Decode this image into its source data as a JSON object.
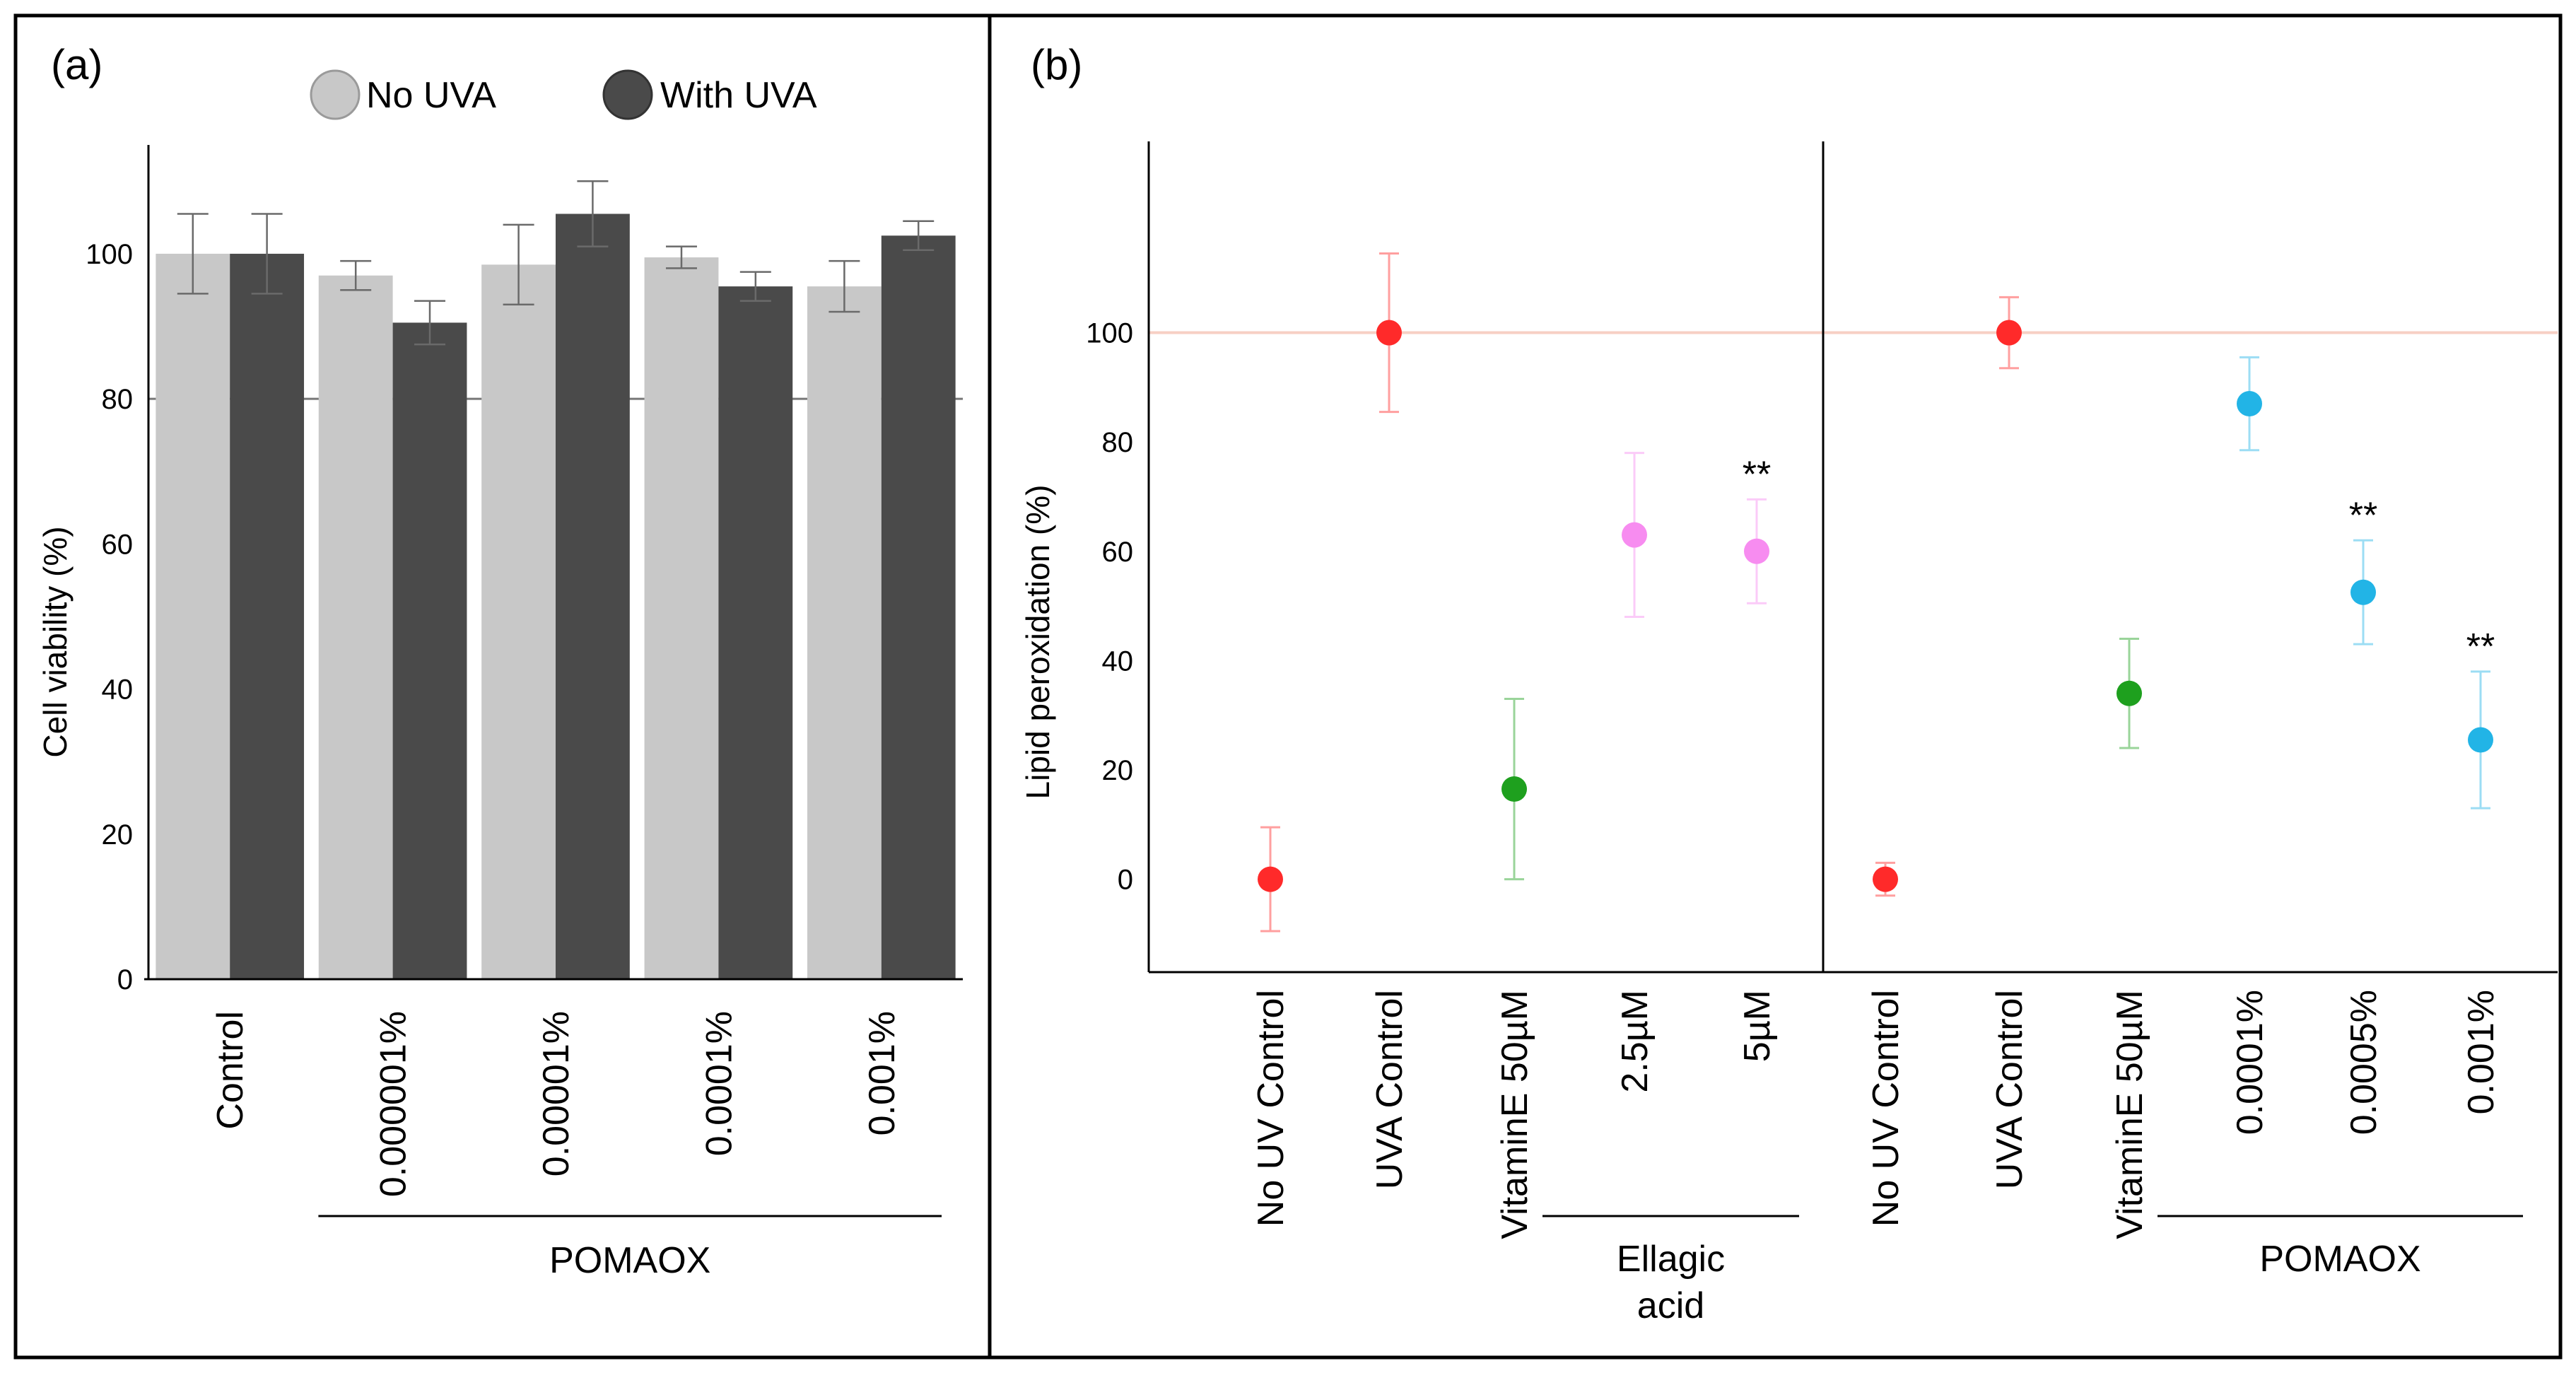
{
  "chart_data": [
    {
      "panel_label": "(a)",
      "type": "bar",
      "ylabel": "Cell viability (%)",
      "ylim": [
        0,
        115
      ],
      "yticks": [
        0,
        20,
        40,
        60,
        80,
        100
      ],
      "reference_line": 80,
      "legend": [
        {
          "name": "No UVA",
          "color": "#c8c8c8"
        },
        {
          "name": "With UVA",
          "color": "#4a4a4a"
        }
      ],
      "categories": [
        "Control",
        "0.000001%",
        "0.00001%",
        "0.0001%",
        "0.001%"
      ],
      "series": [
        {
          "name": "No UVA",
          "values": [
            100,
            97,
            98.5,
            99.5,
            95.5
          ],
          "errors": [
            5.5,
            2,
            5.5,
            1.5,
            3.5
          ]
        },
        {
          "name": "With UVA",
          "values": [
            100,
            90.5,
            105.5,
            95.5,
            102.5
          ],
          "errors": [
            5.5,
            3,
            4.5,
            2,
            2
          ]
        }
      ],
      "group": {
        "label": "POMAOX",
        "from": 1,
        "to": 4
      }
    },
    {
      "panel_label": "(b)",
      "type": "scatter",
      "ylabel": "Lipid peroxidation (%)",
      "ylim": [
        -17,
        135
      ],
      "yticks": [
        0,
        20,
        40,
        60,
        80,
        100
      ],
      "reference_line": 100,
      "categories": [
        "No UV Control",
        "UVA Control",
        "VitaminE 50µM",
        "2.5µM",
        "5µM",
        "No UV Control",
        "UVA Control",
        "VitaminE 50µM",
        "0.0001%",
        "0.0005%",
        "0.001%"
      ],
      "points": [
        {
          "value": 0,
          "error": 9.5,
          "color": "#ff2a2a",
          "mark": ""
        },
        {
          "value": 100,
          "error": 14.5,
          "color": "#ff2a2a",
          "mark": ""
        },
        {
          "value": 16.5,
          "error": 16.5,
          "color": "#1ea01e",
          "mark": ""
        },
        {
          "value": 63,
          "error": 15,
          "color": "#f78cf0",
          "mark": ""
        },
        {
          "value": 60,
          "error": 9.5,
          "color": "#f78cf0",
          "mark": "**"
        },
        {
          "value": 0,
          "error": 3,
          "color": "#ff2a2a",
          "mark": ""
        },
        {
          "value": 100,
          "error": 6.5,
          "color": "#ff2a2a",
          "mark": ""
        },
        {
          "value": 34,
          "error": 10,
          "color": "#1ea01e",
          "mark": ""
        },
        {
          "value": 87,
          "error": 8.5,
          "color": "#22b4e6",
          "mark": ""
        },
        {
          "value": 52.5,
          "error": 9.5,
          "color": "#22b4e6",
          "mark": "**"
        },
        {
          "value": 25.5,
          "error": 12.5,
          "color": "#22b4e6",
          "mark": "**"
        }
      ],
      "groups": [
        {
          "label_lines": [
            "Ellagic",
            "acid"
          ],
          "from": 3,
          "to": 4
        },
        {
          "label_lines": [
            "POMAOX"
          ],
          "from": 8,
          "to": 10
        }
      ],
      "divider_after": 4
    }
  ]
}
